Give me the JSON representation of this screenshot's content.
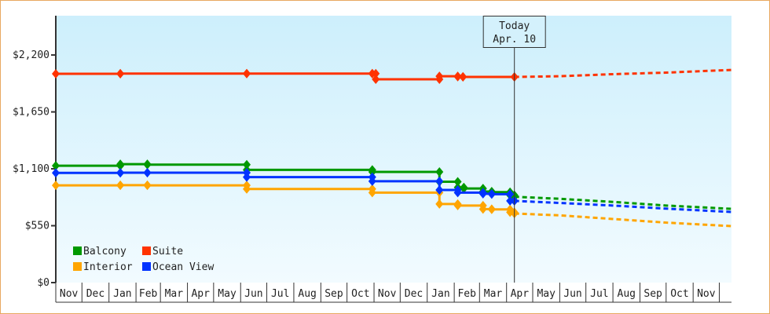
{
  "chart_data": {
    "type": "line",
    "step": true,
    "x_axis": {
      "type": "date",
      "range": [
        "2022-11-01",
        "2024-12-15"
      ],
      "tick_labels": [
        "Nov",
        "Dec",
        "Jan",
        "Feb",
        "Mar",
        "Apr",
        "May",
        "Jun",
        "Jul",
        "Aug",
        "Sep",
        "Oct",
        "Nov",
        "Dec",
        "Jan",
        "Feb",
        "Mar",
        "Apr",
        "May",
        "Jun",
        "Jul",
        "Aug",
        "Sep",
        "Oct",
        "Nov"
      ]
    },
    "y_axis": {
      "range": [
        0,
        2580
      ],
      "ticks": [
        0,
        550,
        1100,
        1650,
        2200
      ],
      "tick_labels": [
        "$0",
        "$550",
        "$1,100",
        "$1,650",
        "$2,200"
      ]
    },
    "grid": false,
    "background": [
      "#cdeffc",
      "#f2fbff"
    ],
    "today_marker": {
      "date": "2024-04-10",
      "label_line1": "Today",
      "label_line2": "Apr. 10"
    },
    "legend": {
      "placement": "bottom-left"
    },
    "series": [
      {
        "name": "Balcony",
        "color": "#009900",
        "history": [
          [
            "2022-11-01",
            1130
          ],
          [
            "2023-01-14",
            1145
          ],
          [
            "2023-02-14",
            1140
          ],
          [
            "2023-06-08",
            1090
          ],
          [
            "2023-10-30",
            1070
          ],
          [
            "2024-01-15",
            975
          ],
          [
            "2024-02-05",
            920
          ],
          [
            "2024-02-12",
            910
          ],
          [
            "2024-03-05",
            880
          ],
          [
            "2024-03-15",
            875
          ],
          [
            "2024-04-05",
            845
          ],
          [
            "2024-04-10",
            830
          ]
        ],
        "forecast": [
          [
            "2024-04-10",
            830
          ],
          [
            "2024-06-01",
            810
          ],
          [
            "2024-08-01",
            780
          ],
          [
            "2024-10-01",
            745
          ],
          [
            "2024-12-15",
            713
          ]
        ]
      },
      {
        "name": "Suite",
        "color": "#ff3300",
        "history": [
          [
            "2022-11-01",
            2018
          ],
          [
            "2023-01-14",
            2020
          ],
          [
            "2023-06-08",
            2020
          ],
          [
            "2023-10-30",
            2020
          ],
          [
            "2023-11-03",
            1965
          ],
          [
            "2024-01-15",
            1995
          ],
          [
            "2024-02-05",
            1990
          ],
          [
            "2024-02-11",
            1988
          ],
          [
            "2024-04-10",
            1988
          ]
        ],
        "forecast": [
          [
            "2024-04-10",
            1988
          ],
          [
            "2024-06-01",
            1995
          ],
          [
            "2024-08-01",
            2015
          ],
          [
            "2024-10-01",
            2030
          ],
          [
            "2024-12-15",
            2056
          ]
        ]
      },
      {
        "name": "Interior",
        "color": "#ffa500",
        "history": [
          [
            "2022-11-01",
            940
          ],
          [
            "2023-01-14",
            942
          ],
          [
            "2023-02-14",
            940
          ],
          [
            "2023-06-08",
            905
          ],
          [
            "2023-10-30",
            870
          ],
          [
            "2024-01-15",
            760
          ],
          [
            "2024-02-05",
            745
          ],
          [
            "2024-03-05",
            710
          ],
          [
            "2024-03-15",
            708
          ],
          [
            "2024-04-05",
            680
          ],
          [
            "2024-04-10",
            668
          ]
        ],
        "forecast": [
          [
            "2024-04-10",
            668
          ],
          [
            "2024-06-01",
            650
          ],
          [
            "2024-08-01",
            615
          ],
          [
            "2024-10-01",
            580
          ],
          [
            "2024-12-15",
            546
          ]
        ]
      },
      {
        "name": "Ocean View",
        "color": "#0033ff",
        "history": [
          [
            "2022-11-01",
            1060
          ],
          [
            "2023-01-14",
            1062
          ],
          [
            "2023-02-14",
            1062
          ],
          [
            "2023-06-08",
            1020
          ],
          [
            "2023-10-30",
            980
          ],
          [
            "2024-01-15",
            895
          ],
          [
            "2024-02-05",
            870
          ],
          [
            "2024-03-05",
            858
          ],
          [
            "2024-03-15",
            855
          ],
          [
            "2024-04-05",
            790
          ],
          [
            "2024-04-10",
            790
          ]
        ],
        "forecast": [
          [
            "2024-04-10",
            790
          ],
          [
            "2024-06-01",
            770
          ],
          [
            "2024-08-01",
            745
          ],
          [
            "2024-10-01",
            715
          ],
          [
            "2024-12-15",
            683
          ]
        ]
      }
    ]
  }
}
